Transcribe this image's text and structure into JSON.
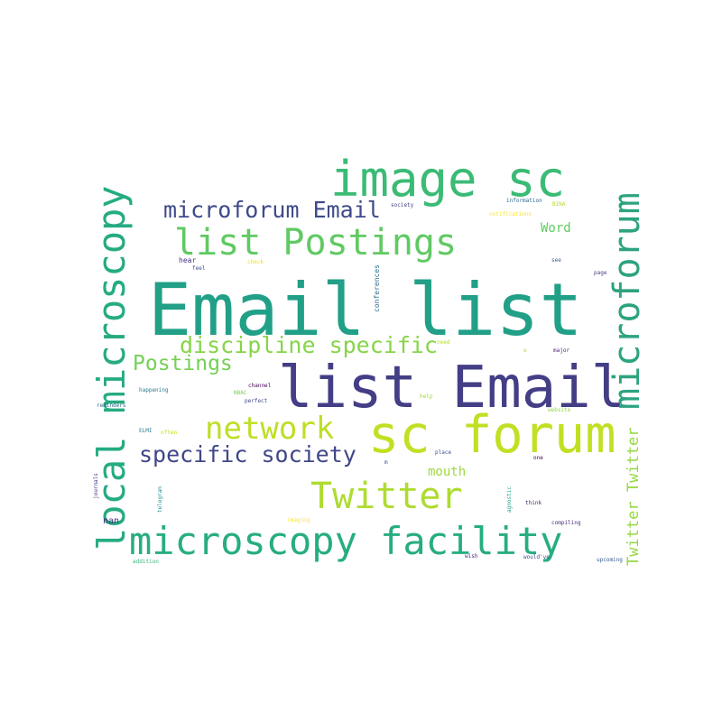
{
  "words": [
    {
      "text": "Email list",
      "color": "#21a087"
    },
    {
      "text": "list Email",
      "color": "#433e85"
    },
    {
      "text": "sc forum",
      "color": "#c2df23"
    },
    {
      "text": "image sc",
      "color": "#3bbb75"
    },
    {
      "text": "microscopy facility",
      "color": "#27ad81"
    },
    {
      "text": "local microscopy",
      "color": "#25ab82"
    },
    {
      "text": "microforum",
      "color": "#2da37f"
    },
    {
      "text": "list Postings",
      "color": "#60c963"
    },
    {
      "text": "Twitter",
      "color": "#addc30"
    },
    {
      "text": "network",
      "color": "#bddf26"
    },
    {
      "text": "discipline specific",
      "color": "#86d549"
    },
    {
      "text": "microforum Email",
      "color": "#3e4a89"
    },
    {
      "text": "specific society",
      "color": "#3f4788"
    },
    {
      "text": "Postings",
      "color": "#75d054"
    },
    {
      "text": "Twitter Twitter",
      "color": "#95d840"
    },
    {
      "text": "Word",
      "color": "#60ca60"
    },
    {
      "text": "mouth",
      "color": "#9dd93b"
    },
    {
      "text": "conferences",
      "color": "#2c728e"
    },
    {
      "text": "nan",
      "color": "#46327e"
    },
    {
      "text": "society",
      "color": "#414487"
    },
    {
      "text": "information",
      "color": "#31688e"
    },
    {
      "text": "notifications",
      "color": "#fde725"
    },
    {
      "text": "BINA",
      "color": "#b5de2b"
    },
    {
      "text": "hear",
      "color": "#46337e"
    },
    {
      "text": "check",
      "color": "#e5e419"
    },
    {
      "text": "see",
      "color": "#38598c"
    },
    {
      "text": "feel",
      "color": "#3b528b"
    },
    {
      "text": "page",
      "color": "#433e85"
    },
    {
      "text": "need",
      "color": "#b8de29"
    },
    {
      "text": "e",
      "color": "#addc30"
    },
    {
      "text": "major",
      "color": "#482576"
    },
    {
      "text": "channel",
      "color": "#440154"
    },
    {
      "text": "happening",
      "color": "#2a788e"
    },
    {
      "text": "NBAC",
      "color": "#7ad151"
    },
    {
      "text": "help",
      "color": "#a0da39"
    },
    {
      "text": "perfect",
      "color": "#3e4989"
    },
    {
      "text": "reminders",
      "color": "#31688e"
    },
    {
      "text": "website",
      "color": "#95d840"
    },
    {
      "text": "often",
      "color": "#c8e020"
    },
    {
      "text": "ELMI",
      "color": "#277f8e"
    },
    {
      "text": "place",
      "color": "#3b528b"
    },
    {
      "text": "m",
      "color": "#3b528b"
    },
    {
      "text": "one",
      "color": "#440154"
    },
    {
      "text": "journals",
      "color": "#453882"
    },
    {
      "text": "telegram",
      "color": "#21918c"
    },
    {
      "text": "agnostic",
      "color": "#20a486"
    },
    {
      "text": "think",
      "color": "#482475"
    },
    {
      "text": "imaging",
      "color": "#fde725"
    },
    {
      "text": "compiling",
      "color": "#472d7b"
    },
    {
      "text": "wish",
      "color": "#482878"
    },
    {
      "text": "would've",
      "color": "#3e4a89"
    },
    {
      "text": "addition",
      "color": "#35b779"
    },
    {
      "text": "upcoming",
      "color": "#365c8d"
    }
  ]
}
